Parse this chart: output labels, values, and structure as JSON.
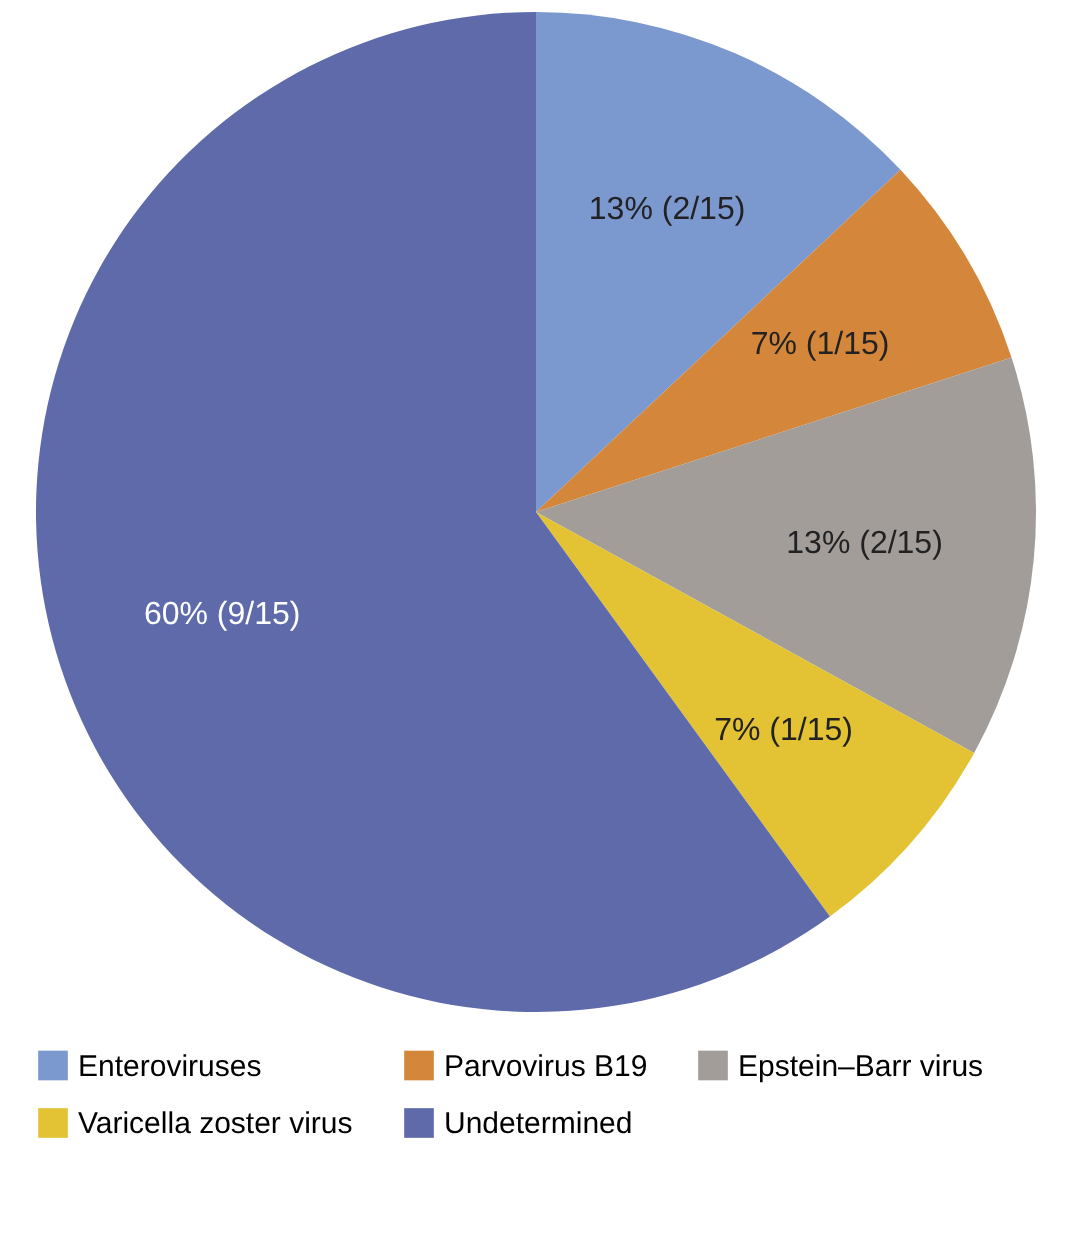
{
  "chart_data": {
    "type": "pie",
    "categories": [
      "Enteroviruses",
      "Parvovirus B19",
      "Epstein–Barr virus",
      "Varicella zoster virus",
      "Undetermined"
    ],
    "values": [
      13,
      7,
      13,
      7,
      60
    ],
    "colors": [
      "#7b98cf",
      "#d4873a",
      "#a29d99",
      "#e3c234",
      "#5e6aaa"
    ],
    "value_labels": [
      "13% (2/15)",
      "7% (1/15)",
      "13% (2/15)",
      "7% (1/15)",
      "60% (9/15)"
    ],
    "legend": "bottom"
  }
}
